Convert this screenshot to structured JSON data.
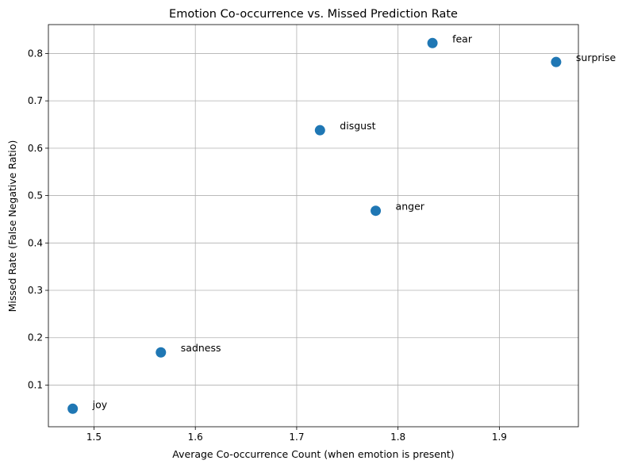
{
  "chart_data": {
    "type": "scatter",
    "title": "Emotion Co-occurrence vs. Missed Prediction Rate",
    "xlabel": "Average Co-occurrence Count (when emotion is present)",
    "ylabel": "Missed Rate (False Negative Ratio)",
    "xlim": [
      1.455,
      1.978
    ],
    "ylim": [
      0.012,
      0.861
    ],
    "xticks": [
      1.5,
      1.6,
      1.7,
      1.8,
      1.9
    ],
    "xtick_labels": [
      "1.5",
      "1.6",
      "1.7",
      "1.8",
      "1.9"
    ],
    "yticks": [
      0.1,
      0.2,
      0.3,
      0.4,
      0.5,
      0.6,
      0.7,
      0.8
    ],
    "ytick_labels": [
      "0.1",
      "0.2",
      "0.3",
      "0.4",
      "0.5",
      "0.6",
      "0.7",
      "0.8"
    ],
    "grid": true,
    "marker_color": "#1f77b4",
    "points": [
      {
        "label": "joy",
        "x": 1.479,
        "y": 0.05
      },
      {
        "label": "sadness",
        "x": 1.566,
        "y": 0.169
      },
      {
        "label": "disgust",
        "x": 1.723,
        "y": 0.638
      },
      {
        "label": "anger",
        "x": 1.778,
        "y": 0.468
      },
      {
        "label": "fear",
        "x": 1.834,
        "y": 0.822
      },
      {
        "label": "surprise",
        "x": 1.956,
        "y": 0.782
      }
    ]
  }
}
